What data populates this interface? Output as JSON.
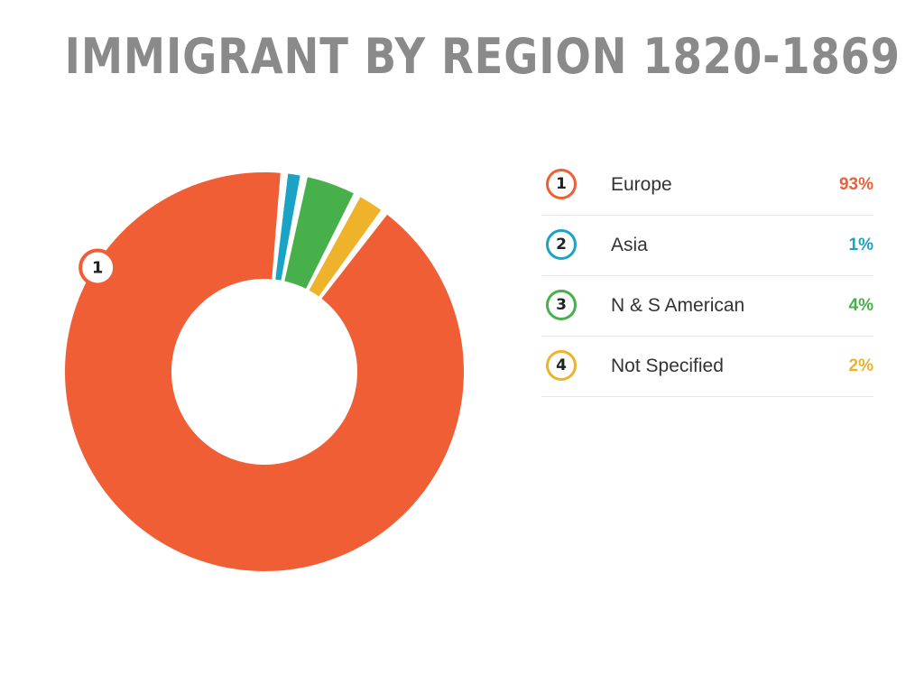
{
  "title": "IMMIGRANT BY REGION 1820-1869",
  "chart_data": {
    "type": "pie",
    "title": "IMMIGRANT BY REGION 1820-1869",
    "categories": [
      "Europe",
      "Asia",
      "N & S American",
      "Not Specified"
    ],
    "values": [
      93,
      1,
      4,
      2
    ],
    "value_labels": [
      "93%",
      "1%",
      "4%",
      "2%"
    ],
    "unit": "%",
    "colors": [
      "#f05e35",
      "#1ba3c6",
      "#47b04b",
      "#eeb32b"
    ],
    "markers": [
      "1",
      "2",
      "3",
      "4"
    ],
    "slice_marker": "1",
    "donut": true,
    "legend_position": "right"
  },
  "legend": [
    {
      "marker": "1",
      "label": "Europe",
      "value": "93%",
      "color": "#f05e35"
    },
    {
      "marker": "2",
      "label": "Asia",
      "value": "1%",
      "color": "#1ba3c6"
    },
    {
      "marker": "3",
      "label": "N & S American",
      "value": "4%",
      "color": "#47b04b"
    },
    {
      "marker": "4",
      "label": "Not Specified",
      "value": "2%",
      "color": "#eeb32b"
    }
  ]
}
